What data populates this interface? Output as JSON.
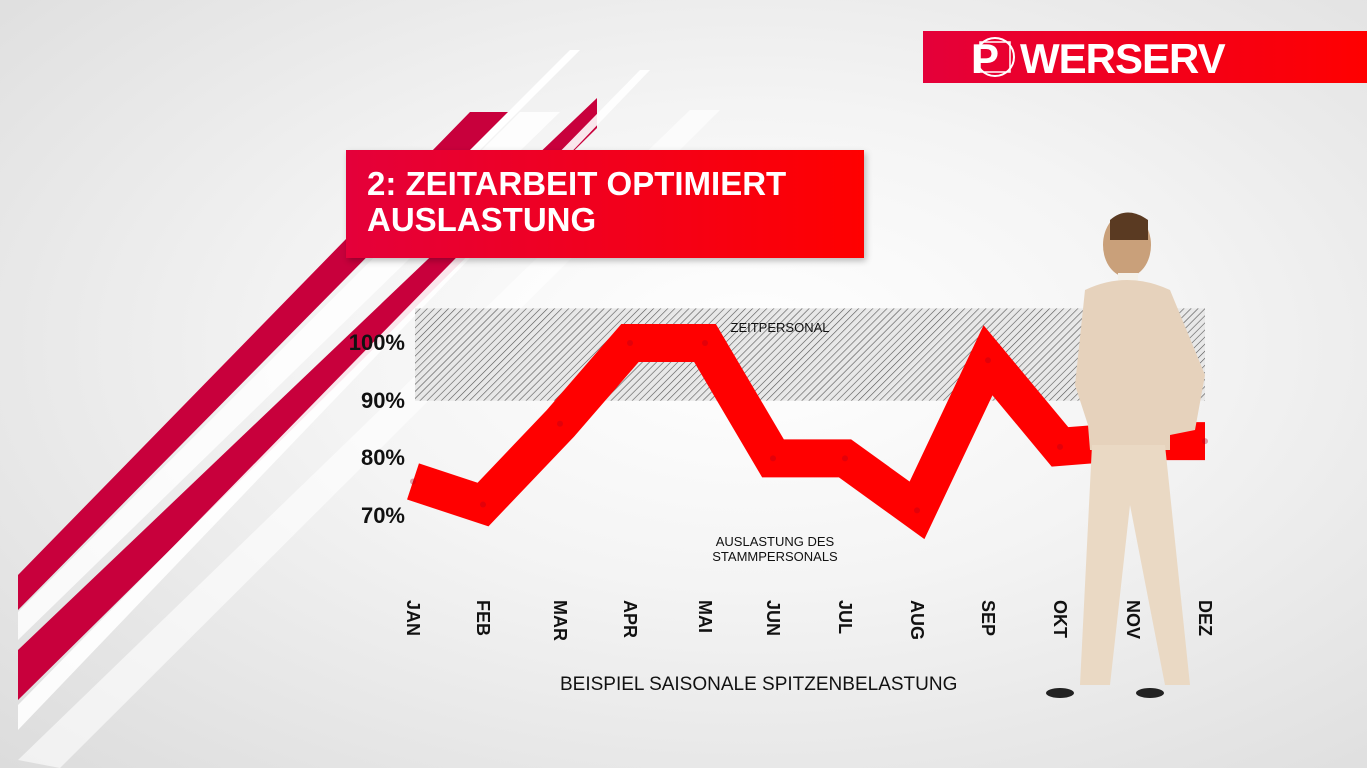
{
  "logo": {
    "text": "POWERSERV",
    "color": "#e4003a"
  },
  "title": {
    "line1": "2: ZEITARBEIT OPTIMIERT",
    "line2": "AUSLASTUNG"
  },
  "chart_data": {
    "type": "line",
    "categories": [
      "JAN",
      "FEB",
      "MAR",
      "APR",
      "MAI",
      "JUN",
      "JUL",
      "AUG",
      "SEP",
      "OKT",
      "NOV",
      "DEZ"
    ],
    "values": [
      76,
      72,
      86,
      100,
      100,
      80,
      80,
      71,
      97,
      82,
      83,
      83
    ],
    "ylim": [
      65,
      108
    ],
    "yticks": [
      {
        "value": 100,
        "label": "100%"
      },
      {
        "value": 90,
        "label": "90%"
      },
      {
        "value": 80,
        "label": "80%"
      },
      {
        "value": 70,
        "label": "70%"
      }
    ],
    "band": {
      "from": 90,
      "to": 106,
      "label": "ZEITPERSONAL",
      "pattern": "hatched"
    },
    "series_label_line1": "AUSLASTUNG DES",
    "series_label_line2": "STAMMPERSONALS",
    "xlabel": "BEISPIEL SAISONALE SPITZENBELASTUNG",
    "line_color": "#ff0000",
    "grid": false
  }
}
